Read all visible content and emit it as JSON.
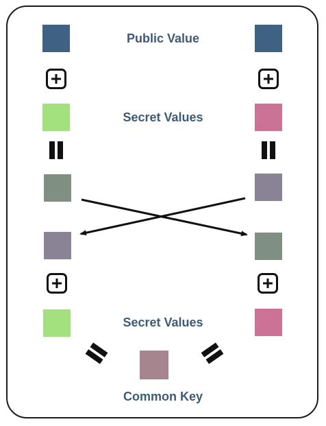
{
  "labels": {
    "public": "Public Value",
    "secret_top": "Secret Values",
    "secret_bottom": "Secret Values",
    "common": "Common Key"
  },
  "colors": {
    "public": "#3e6184",
    "secret_left": "#a3e07e",
    "secret_right": "#cc7297",
    "mix_left": "#7f8f81",
    "mix_right": "#898395",
    "common": "#a7858f",
    "label": "#3d5a78",
    "ink": "#111111"
  }
}
